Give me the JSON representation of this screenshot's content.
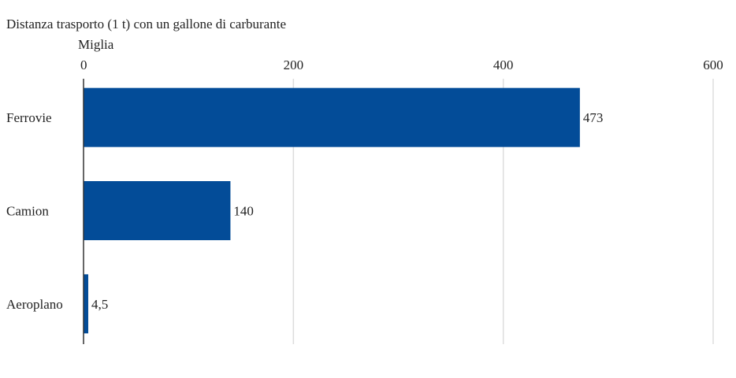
{
  "chart_data": {
    "type": "bar",
    "orientation": "horizontal",
    "title": "Distanza trasporto (1 t) con un gallone di carburante",
    "xlabel": "Miglia",
    "ylabel": "",
    "categories": [
      "Ferrovie",
      "Camion",
      "Aeroplano"
    ],
    "values": [
      473,
      140,
      4.5
    ],
    "value_labels": [
      "473",
      "140",
      "4,5"
    ],
    "xlim": [
      0,
      600
    ],
    "xticks": [
      0,
      200,
      400,
      600
    ],
    "xtick_labels": [
      "0",
      "200",
      "400",
      "600"
    ],
    "grid": true,
    "legend": "none",
    "bar_color": "#034c98"
  }
}
